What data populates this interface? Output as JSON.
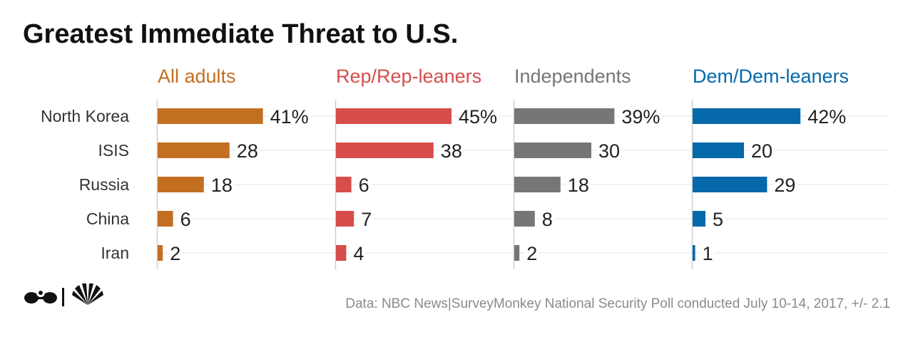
{
  "chart_data": {
    "type": "bar",
    "title": "Greatest Immediate Threat to U.S.",
    "categories": [
      "North Korea",
      "ISIS",
      "Russia",
      "China",
      "Iran"
    ],
    "series": [
      {
        "name": "All adults",
        "color": "#c36f22",
        "values": [
          41,
          28,
          18,
          6,
          2
        ],
        "labels": [
          "41%",
          "28",
          "18",
          "6",
          "2"
        ]
      },
      {
        "name": "Rep/Rep-leaners",
        "color": "#d64d4b",
        "values": [
          45,
          38,
          6,
          7,
          4
        ],
        "labels": [
          "45%",
          "38",
          "6",
          "7",
          "4"
        ]
      },
      {
        "name": "Independents",
        "color": "#767676",
        "values": [
          39,
          30,
          18,
          8,
          2
        ],
        "labels": [
          "39%",
          "30",
          "18",
          "8",
          "2"
        ]
      },
      {
        "name": "Dem/Dem-leaners",
        "color": "#0569aa",
        "values": [
          42,
          20,
          29,
          5,
          1
        ],
        "labels": [
          "42%",
          "20",
          "29",
          "5",
          "1"
        ]
      }
    ],
    "grid": true,
    "source": "Data: NBC News|SurveyMonkey National Security Poll conducted July 10-14, 2017, +/- 2.1"
  },
  "logos": {
    "surveymonkey": "surveymonkey-logo-icon",
    "nbc": "nbc-peacock-icon"
  }
}
